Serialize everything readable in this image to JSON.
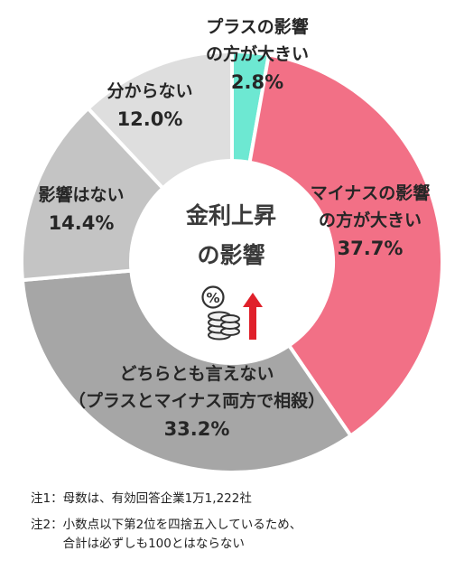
{
  "chart_data": {
    "type": "pie",
    "variant": "donut",
    "title": "金利上昇\nの影響",
    "slices": [
      {
        "label": "プラスの影響\nの方が大きい",
        "value": 2.8,
        "value_text": "2.8%",
        "color": "#6de8d2"
      },
      {
        "label": "マイナスの影響\nの方が大きい",
        "value": 37.7,
        "value_text": "37.7%",
        "color": "#f27086"
      },
      {
        "label": "どちらとも言えない\n（プラスとマイナス両方で相殺）",
        "value": 33.2,
        "value_text": "33.2%",
        "color": "#a6a6a6"
      },
      {
        "label": "影響はない",
        "value": 14.4,
        "value_text": "14.4%",
        "color": "#c4c4c4"
      },
      {
        "label": "分からない",
        "value": 12.0,
        "value_text": "12.0%",
        "color": "#dedede"
      }
    ],
    "center_icon": "interest-rate-rise-icon"
  },
  "notes": [
    {
      "key": "注1：",
      "text": "母数は、有効回答企業1万1,222社"
    },
    {
      "key": "注2：",
      "text": "小数点以下第2位を四捨五入しているため、\n合計は必ずしも100とはならない"
    }
  ]
}
